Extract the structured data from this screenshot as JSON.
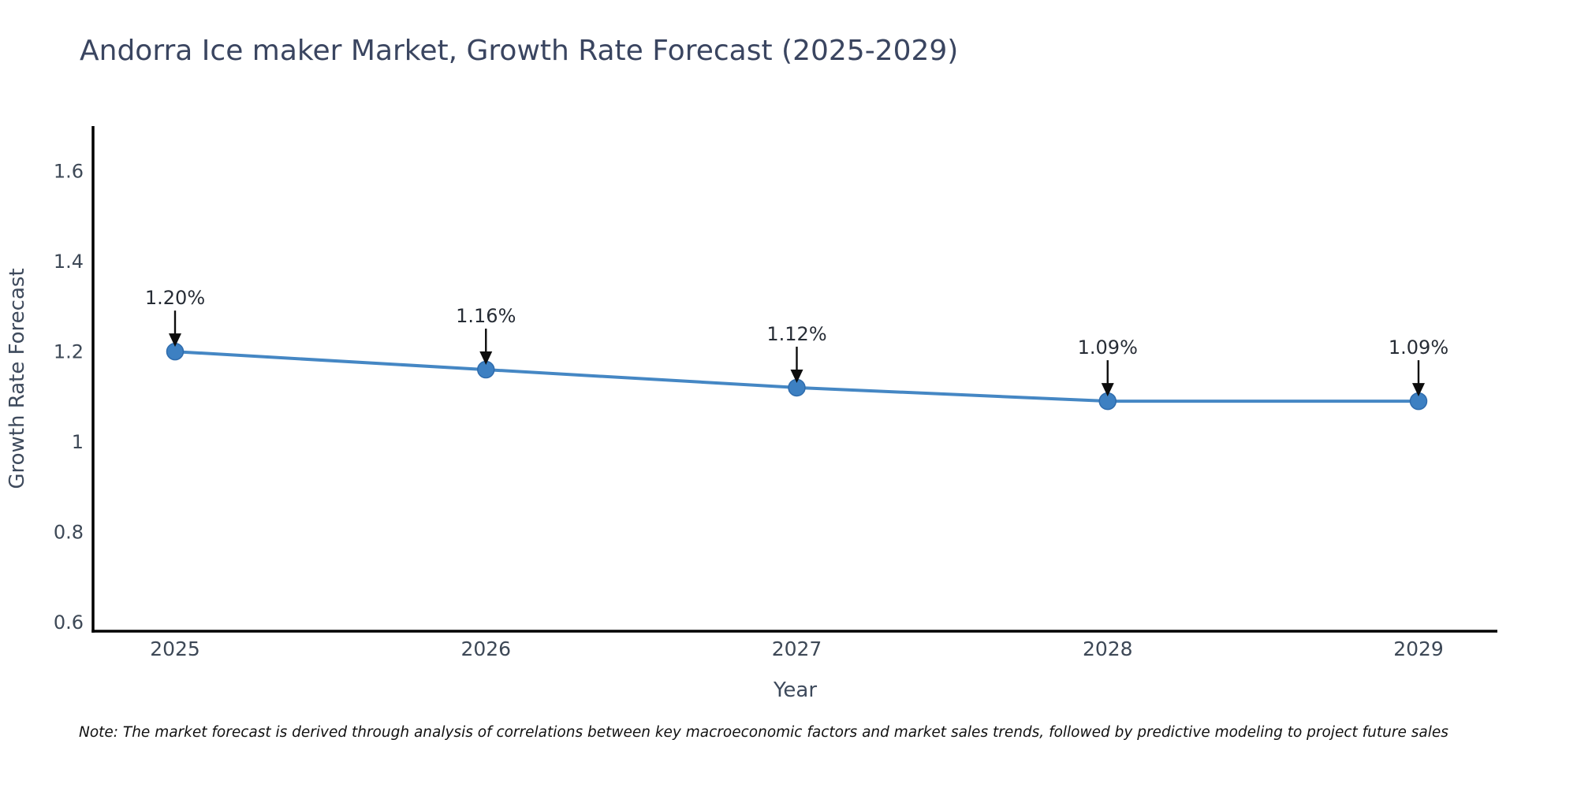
{
  "header": {
    "title": "Andorra Ice maker Market, Growth Rate Forecast (2025-2029)"
  },
  "chart_data": {
    "type": "line",
    "title": "Andorra Ice maker Market, Growth Rate Forecast (2025-2029)",
    "categories": [
      "2025",
      "2026",
      "2027",
      "2028",
      "2029"
    ],
    "series": [
      {
        "name": "Growth Rate Forecast",
        "values": [
          1.2,
          1.16,
          1.12,
          1.09,
          1.09
        ],
        "point_labels": [
          "1.20%",
          "1.16%",
          "1.12%",
          "1.09%",
          "1.09%"
        ]
      }
    ],
    "xlabel": "Year",
    "ylabel": "Growth Rate Forecast",
    "ylim": [
      0.58,
      1.7
    ],
    "yticks": {
      "values": [
        0.6,
        0.8,
        1.0,
        1.2,
        1.4,
        1.6
      ],
      "labels": [
        "0.6",
        "0.8",
        "1",
        "1.2",
        "1.4",
        "1.6"
      ]
    },
    "grid": false,
    "legend": "none",
    "annotation_style": "value label with downward black arrow above each marker",
    "colors": {
      "line": "#4587c4",
      "marker": "#3d80c2",
      "marker_edge": "#2f6cad",
      "arrow": "#0d0d0d",
      "axis": "#000000",
      "title_text": "#3a4560",
      "tick_text": "#3d4856",
      "axis_label_text": "#3e4a5c",
      "annotation_text": "#262c35"
    }
  },
  "footer": {
    "note": "Note: The market forecast is derived through analysis of correlations between key macroeconomic factors and market sales trends, followed by predictive modeling to project future sales"
  }
}
